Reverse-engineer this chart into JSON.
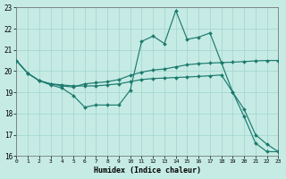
{
  "xlabel": "Humidex (Indice chaleur)",
  "bg_color": "#c5ebe4",
  "grid_color": "#a0d5cc",
  "line_color": "#1d7a6e",
  "xlim": [
    0,
    23
  ],
  "ylim": [
    16,
    23
  ],
  "xticks": [
    0,
    1,
    2,
    3,
    4,
    5,
    6,
    7,
    8,
    9,
    10,
    11,
    12,
    13,
    14,
    15,
    16,
    17,
    18,
    19,
    20,
    21,
    22,
    23
  ],
  "yticks": [
    16,
    17,
    18,
    19,
    20,
    21,
    22,
    23
  ],
  "series": [
    {
      "x": [
        0,
        1,
        2,
        3,
        4,
        5,
        6,
        7,
        8,
        9,
        10,
        11,
        12,
        13,
        14,
        15,
        16,
        17,
        18,
        19,
        20,
        21,
        22,
        23
      ],
      "y": [
        20.5,
        19.9,
        19.55,
        19.35,
        19.2,
        18.85,
        18.3,
        18.4,
        18.4,
        18.4,
        19.1,
        21.4,
        21.65,
        21.3,
        22.85,
        21.5,
        21.6,
        21.8,
        20.4,
        19.0,
        17.85,
        16.6,
        16.2,
        16.2
      ]
    },
    {
      "x": [
        0,
        1,
        2,
        3,
        4,
        5,
        6,
        7,
        8,
        9,
        10,
        11,
        12,
        13,
        14,
        15,
        16,
        17,
        18,
        19,
        20,
        21,
        22,
        23
      ],
      "y": [
        20.5,
        19.9,
        19.55,
        19.4,
        19.3,
        19.25,
        19.4,
        19.45,
        19.5,
        19.6,
        19.8,
        19.95,
        20.05,
        20.1,
        20.2,
        20.3,
        20.35,
        20.38,
        20.4,
        20.42,
        20.45,
        20.48,
        20.5,
        20.5
      ]
    },
    {
      "x": [
        0,
        1,
        2,
        3,
        4,
        5,
        6,
        7,
        8,
        9,
        10,
        11,
        12,
        13,
        14,
        15,
        16,
        17,
        18,
        19,
        20,
        21,
        22,
        23
      ],
      "y": [
        20.5,
        19.9,
        19.55,
        19.4,
        19.35,
        19.3,
        19.3,
        19.3,
        19.35,
        19.4,
        19.5,
        19.6,
        19.65,
        19.67,
        19.7,
        19.72,
        19.75,
        19.78,
        19.82,
        19.0,
        18.2,
        17.0,
        16.55,
        16.2
      ]
    }
  ]
}
